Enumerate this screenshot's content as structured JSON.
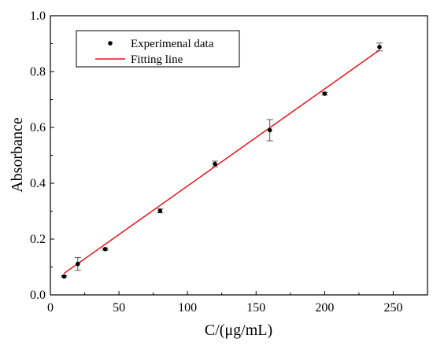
{
  "chart_data": {
    "type": "scatter",
    "xlabel": "C/(μg/mL)",
    "ylabel": "Absorbance",
    "xlim": [
      0,
      275
    ],
    "ylim": [
      0,
      1.0
    ],
    "x_ticks": [
      0,
      50,
      100,
      150,
      200,
      250
    ],
    "y_ticks": [
      0.0,
      0.2,
      0.4,
      0.6,
      0.8,
      1.0
    ],
    "x_tick_labels": [
      "0",
      "50",
      "100",
      "150",
      "200",
      "250"
    ],
    "y_tick_labels": [
      "0.0",
      "0.2",
      "0.4",
      "0.6",
      "0.8",
      "1.0"
    ],
    "legend_position": "top-left",
    "grid": false,
    "series": [
      {
        "name": "Experimenal data",
        "kind": "scatter-with-error-bars",
        "color": "#000000",
        "x": [
          10,
          20,
          40,
          80,
          120,
          160,
          200,
          240
        ],
        "y": [
          0.066,
          0.111,
          0.164,
          0.301,
          0.469,
          0.59,
          0.721,
          0.888
        ],
        "error": [
          0.003,
          0.023,
          0.004,
          0.007,
          0.01,
          0.038,
          0.005,
          0.014
        ]
      },
      {
        "name": "Fitting line",
        "kind": "line",
        "color": "#e8141c",
        "x": [
          10,
          240
        ],
        "y": [
          0.077,
          0.877
        ]
      }
    ]
  }
}
